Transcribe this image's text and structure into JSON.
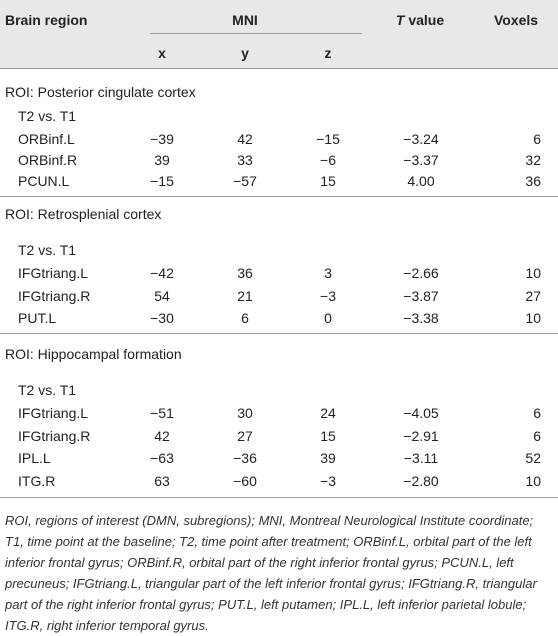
{
  "header": {
    "region": "Brain region",
    "mni": "MNI",
    "t_value": "T value",
    "voxels": "Voxels",
    "x": "x",
    "y": "y",
    "z": "z"
  },
  "sections": [
    {
      "title": "ROI: Posterior cingulate cortex",
      "comparison": "T2 vs. T1",
      "rows": [
        [
          "ORBinf.L",
          "−39",
          "42",
          "−15",
          "−3.24",
          "6"
        ],
        [
          "ORBinf.R",
          "39",
          "33",
          "−6",
          "−3.37",
          "32"
        ],
        [
          "PCUN.L",
          "−15",
          "−57",
          "15",
          "4.00",
          "36"
        ]
      ]
    },
    {
      "title": "ROI: Retrosplenial cortex",
      "comparison": "T2 vs. T1",
      "rows": [
        [
          "IFGtriang.L",
          "−42",
          "36",
          "3",
          "−2.66",
          "10"
        ],
        [
          "IFGtriang.R",
          "54",
          "21",
          "−3",
          "−3.87",
          "27"
        ],
        [
          "PUT.L",
          "−30",
          "6",
          "0",
          "−3.38",
          "10"
        ]
      ]
    },
    {
      "title": "ROI: Hippocampal formation",
      "comparison": "T2 vs. T1",
      "rows": [
        [
          "IFGtriang.L",
          "−51",
          "30",
          "24",
          "−4.05",
          "6"
        ],
        [
          "IFGtriang.R",
          "42",
          "27",
          "15",
          "−2.91",
          "6"
        ],
        [
          "IPL.L",
          "−63",
          "−36",
          "39",
          "−3.11",
          "52"
        ],
        [
          "ITG.R",
          "63",
          "−60",
          "−3",
          "−2.80",
          "10"
        ]
      ]
    }
  ],
  "footnote": "ROI, regions of interest (DMN, subregions); MNI, Montreal Neurological Institute coordinate; T1, time point at the baseline; T2, time point after treatment; ORBinf.L, orbital part of the left inferior frontal gyrus; ORBinf.R, orbital part of the right inferior frontal gyrus; PCUN.L, left precuneus; IFGtriang.L, triangular part of the left inferior frontal gyrus; IFGtriang.R, triangular part of the right inferior frontal gyrus; PUT.L, left putamen; IPL.L, left inferior parietal lobule; ITG.R, right inferior temporal gyrus."
}
